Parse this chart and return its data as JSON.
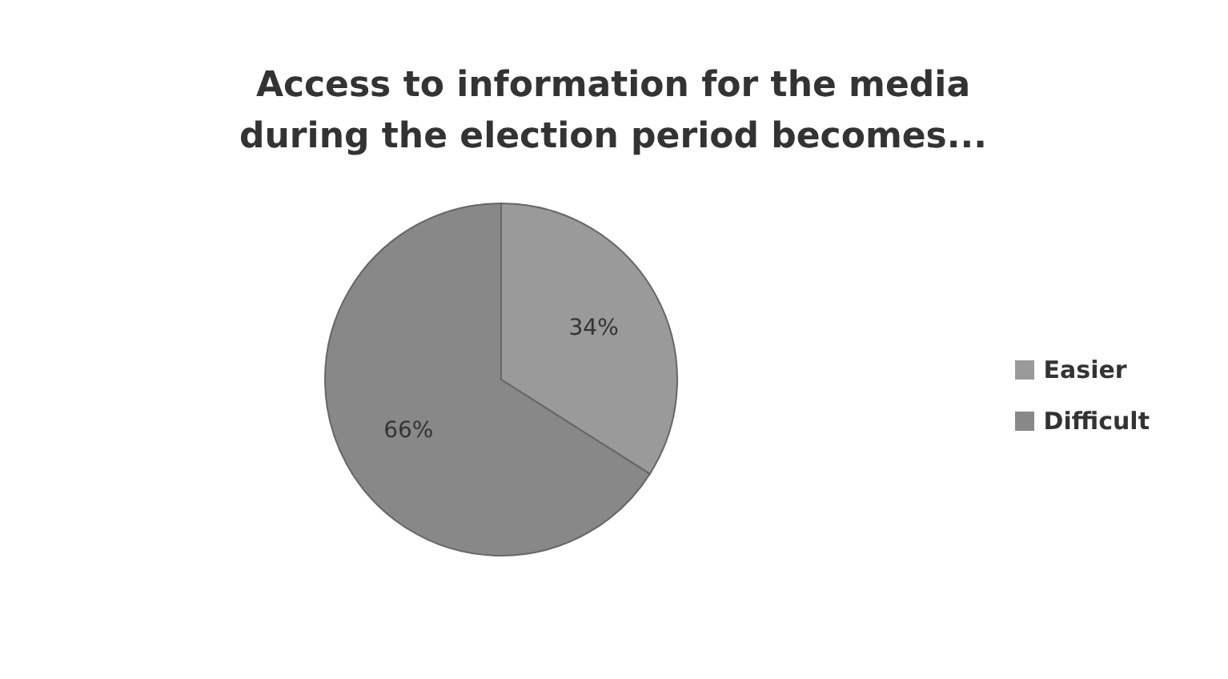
{
  "chart_data": {
    "type": "pie",
    "title": "Access to information for the media during the election period becomes...",
    "categories": [
      "Easier",
      "Difficult"
    ],
    "values": [
      34,
      66
    ],
    "colors": [
      "#9a9a9a",
      "#888888"
    ],
    "value_labels": [
      "34%",
      "66%"
    ],
    "legend": "right"
  }
}
